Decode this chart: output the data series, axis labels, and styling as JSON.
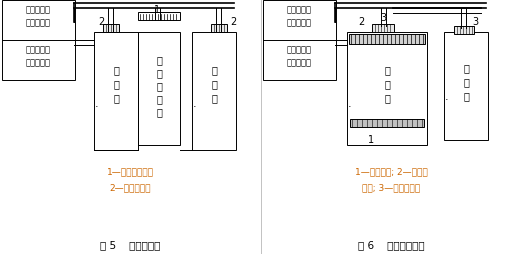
{
  "fig_width": 5.22,
  "fig_height": 2.54,
  "dpi": 100,
  "bg_color": "#ffffff",
  "text_color": "#000000",
  "orange_color": "#cc6600",
  "left_label1_lines": [
    "接组合式空",
    "调器送风管"
  ],
  "left_label2_lines": [
    "接组合式空",
    "调器回风管"
  ],
  "fig5_title": "图 5    设围档送风",
  "fig5_legend1": "1—垂直层流罩；",
  "fig5_legend2": "2—高效送风口",
  "fig5_zone_left": [
    "万",
    "级",
    "区"
  ],
  "fig5_zone_center": [
    "局",
    "部",
    "百",
    "级",
    "区"
  ],
  "fig5_zone_right": [
    "万",
    "级",
    "区"
  ],
  "right_label1_lines": [
    "接组合式空",
    "调器送风管"
  ],
  "right_label2_lines": [
    "接组合式空",
    "调器回风管"
  ],
  "fig6_title": "图 6    格栅地板回风",
  "fig6_legend1": "1—格栅地板; 2—风机过",
  "fig6_legend2": "滤器; 3—高效送风口",
  "fig6_zone_left": [
    "百",
    "级",
    "区"
  ],
  "fig6_zone_right": [
    "万",
    "级",
    "区"
  ]
}
